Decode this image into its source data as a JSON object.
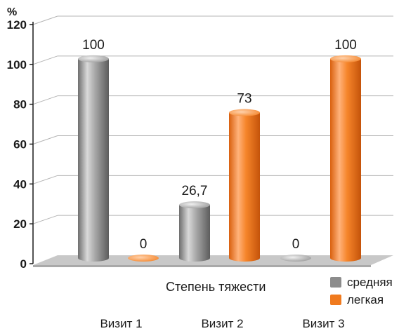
{
  "chart_data": {
    "type": "bar",
    "title": "",
    "ylabel": "%",
    "xlabel": "Степень тяжести",
    "ylim": [
      0,
      120
    ],
    "yticks": [
      0,
      20,
      40,
      60,
      80,
      100,
      120
    ],
    "grid": true,
    "legend_position": "bottom-right",
    "categories": [
      "Визит 1",
      "Визит 2",
      "Визит 3"
    ],
    "series": [
      {
        "name": "средняя",
        "color": "#8c8c8c",
        "values": [
          100,
          26.7,
          0
        ],
        "labels": [
          "100",
          "26,7",
          "0"
        ]
      },
      {
        "name": "легкая",
        "color": "#f07a1e",
        "values": [
          0,
          73,
          100
        ],
        "labels": [
          "0",
          "73",
          "100"
        ]
      }
    ]
  }
}
